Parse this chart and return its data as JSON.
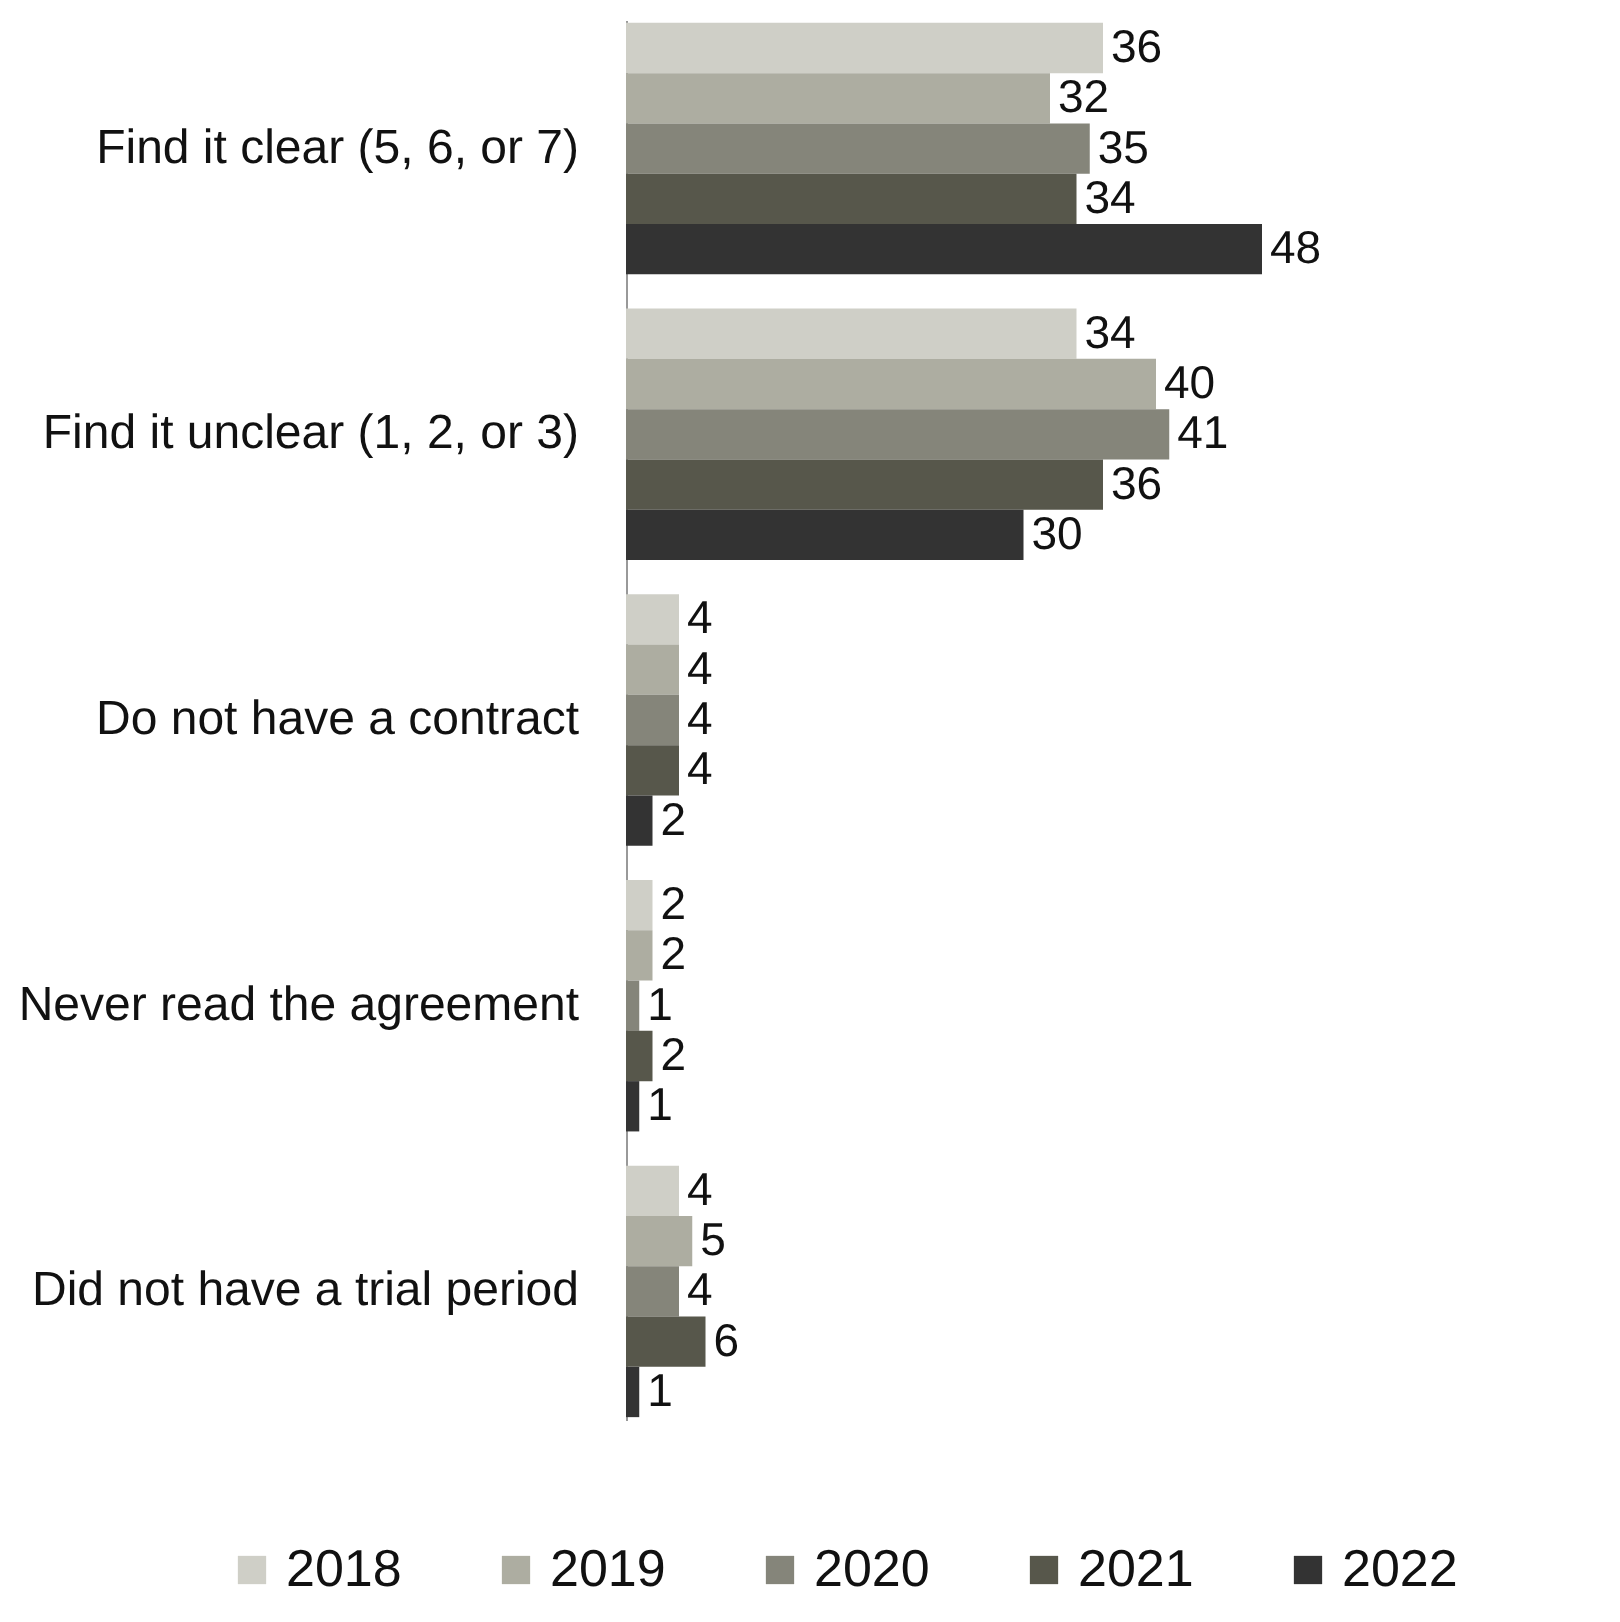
{
  "chart_data": {
    "type": "bar",
    "orientation": "horizontal",
    "categories": [
      "Find it clear (5, 6, or 7)",
      "Find it unclear (1, 2, or 3)",
      "Do not have a contract",
      "Never read the agreement",
      "Did not have a trial period"
    ],
    "series": [
      {
        "name": "2018",
        "color": "#cfcfc7",
        "values": [
          36,
          34,
          4,
          2,
          4
        ]
      },
      {
        "name": "2019",
        "color": "#adada1",
        "values": [
          32,
          40,
          4,
          2,
          5
        ]
      },
      {
        "name": "2020",
        "color": "#85857a",
        "values": [
          35,
          41,
          4,
          1,
          4
        ]
      },
      {
        "name": "2021",
        "color": "#57574b",
        "values": [
          34,
          36,
          4,
          2,
          6
        ]
      },
      {
        "name": "2022",
        "color": "#333333",
        "values": [
          48,
          30,
          2,
          1,
          1
        ]
      }
    ],
    "data_labels": true,
    "legend": "bottom",
    "grid": false
  }
}
